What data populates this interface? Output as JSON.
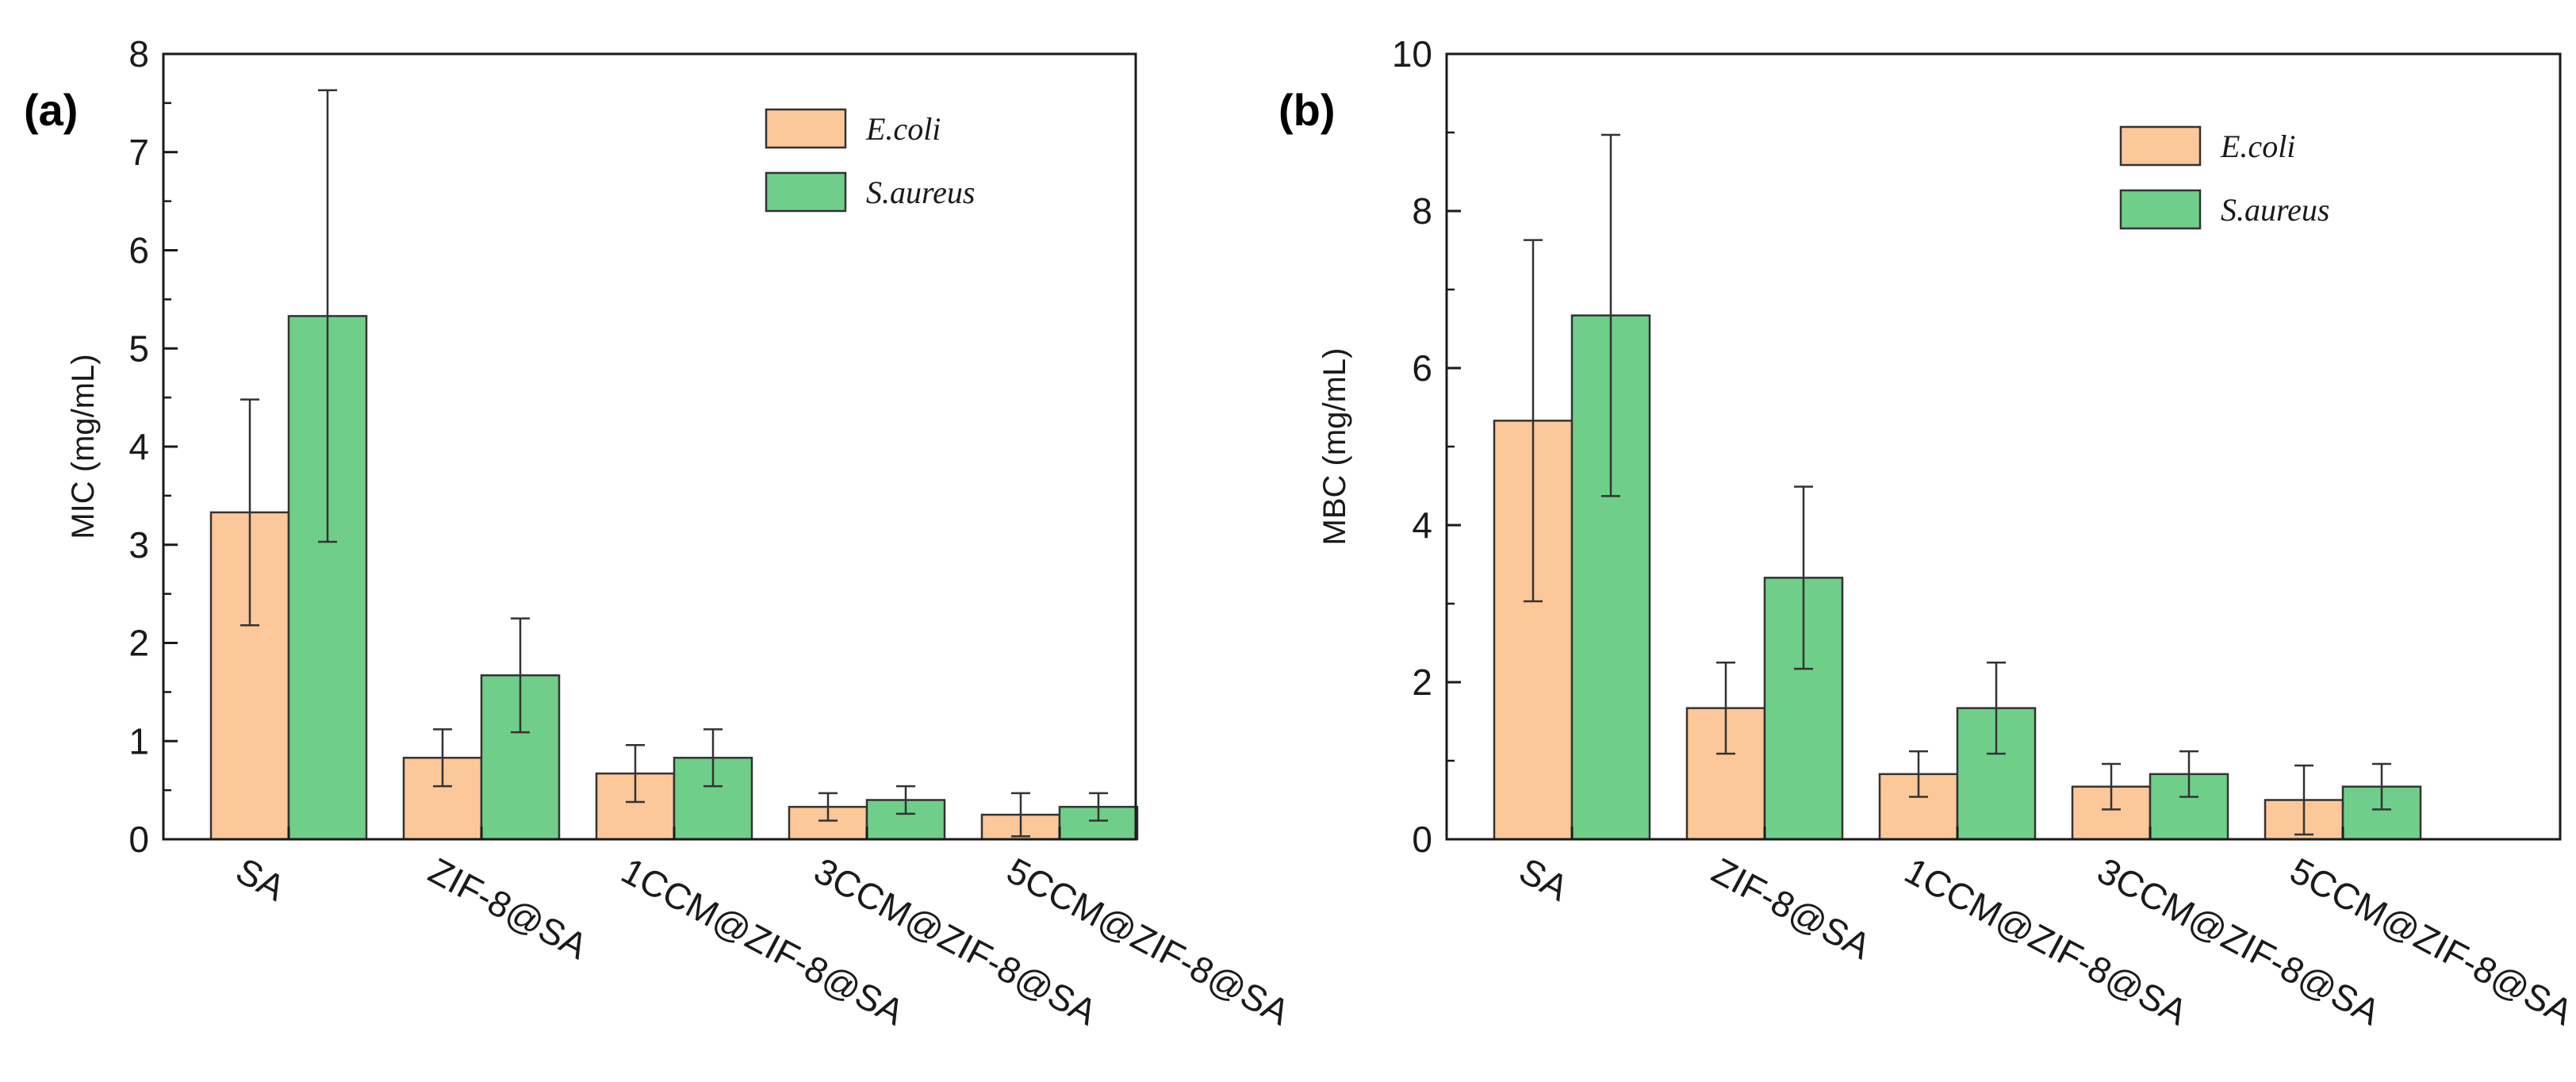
{
  "colors": {
    "ecoli": "#FDC899",
    "saureus": "#6FCF8A",
    "outline": "#333333",
    "error": "#333333"
  },
  "chart_data": [
    {
      "type": "bar",
      "panel_label": "(a)",
      "ylabel": "MIC (mg/mL)",
      "xlabel": "",
      "ylim": [
        0,
        8
      ],
      "yticks": [
        "0",
        "1",
        "2",
        "3",
        "4",
        "5",
        "6",
        "7",
        "8"
      ],
      "categories": [
        "SA",
        "ZIF-8@SA",
        "1CCM@ZIF-8@SA",
        "3CCM@ZIF-8@SA",
        "5CCM@ZIF-8@SA"
      ],
      "legend_position": "top-right",
      "series": [
        {
          "name": "E.coli",
          "color_key": "ecoli",
          "values": [
            3.33,
            0.83,
            0.67,
            0.33,
            0.25
          ],
          "errors": [
            1.15,
            0.29,
            0.29,
            0.14,
            0.22
          ]
        },
        {
          "name": "S.aureus",
          "color_key": "saureus",
          "values": [
            5.33,
            1.67,
            0.83,
            0.4,
            0.33
          ],
          "errors": [
            2.3,
            0.58,
            0.29,
            0.14,
            0.14
          ]
        }
      ]
    },
    {
      "type": "bar",
      "panel_label": "(b)",
      "ylabel": "MBC (mg/mL)",
      "xlabel": "",
      "ylim": [
        0,
        10
      ],
      "yticks": [
        "0",
        "2",
        "4",
        "6",
        "8",
        "10"
      ],
      "categories": [
        "SA",
        "ZIF-8@SA",
        "1CCM@ZIF-8@SA",
        "3CCM@ZIF-8@SA",
        "5CCM@ZIF-8@SA"
      ],
      "legend_position": "top-right",
      "series": [
        {
          "name": "E.coli",
          "color_key": "ecoli",
          "values": [
            5.33,
            1.67,
            0.83,
            0.67,
            0.5
          ],
          "errors": [
            2.3,
            0.58,
            0.29,
            0.29,
            0.44
          ]
        },
        {
          "name": "S.aureus",
          "color_key": "saureus",
          "values": [
            6.67,
            3.33,
            1.67,
            0.83,
            0.67
          ],
          "errors": [
            2.3,
            1.16,
            0.58,
            0.29,
            0.29
          ]
        }
      ]
    }
  ]
}
